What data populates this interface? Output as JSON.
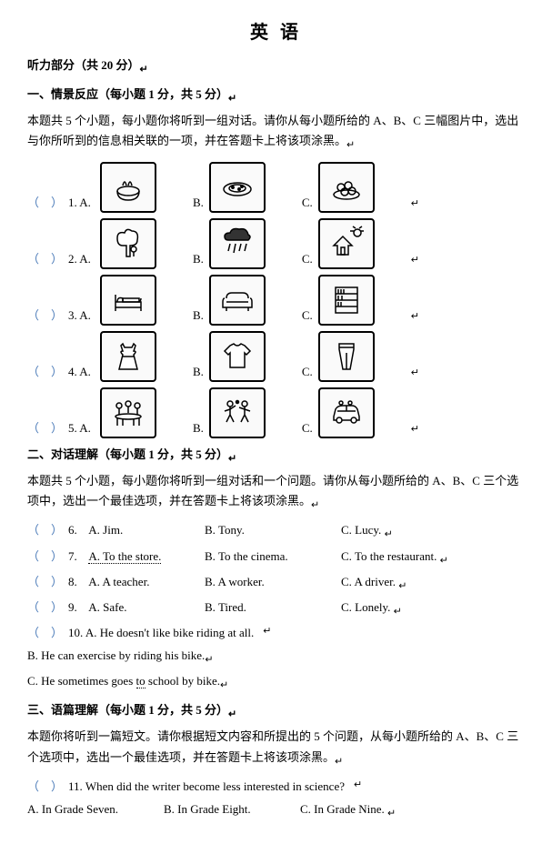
{
  "title": "英 语",
  "listening_header": "听力部分（共 20 分）",
  "arrow": "↵",
  "section1": {
    "heading": "一、情景反应（每小题 1 分，共 5 分）",
    "instruction": "本题共 5 个小题，每小题你将听到一组对话。请你从每小题所给的 A、B、C 三幅图片中，选出与你所听到的信息相关联的一项，并在答题卡上将该项涂黑。",
    "rows": [
      {
        "num": "1.",
        "a": "A.",
        "b": "B.",
        "c": "C.",
        "icons": [
          "bowl",
          "plate",
          "balls"
        ]
      },
      {
        "num": "2.",
        "a": "A.",
        "b": "B.",
        "c": "C.",
        "icons": [
          "tree",
          "rain",
          "house"
        ]
      },
      {
        "num": "3.",
        "a": "A.",
        "b": "B.",
        "c": "C.",
        "icons": [
          "bed",
          "sofa",
          "shelf"
        ]
      },
      {
        "num": "4.",
        "a": "A.",
        "b": "B.",
        "c": "C.",
        "icons": [
          "dress",
          "tshirt",
          "pants"
        ]
      },
      {
        "num": "5.",
        "a": "A.",
        "b": "B.",
        "c": "C.",
        "icons": [
          "table",
          "play",
          "car"
        ]
      }
    ]
  },
  "section2": {
    "heading": "二、对话理解（每小题 1 分，共 5 分）",
    "instruction": "本题共 5 个小题，每小题你将听到一组对话和一个问题。请你从每小题所给的 A、B、C 三个选项中，选出一个最佳选项，并在答题卡上将该项涂黑。",
    "rows": [
      {
        "num": "6.",
        "a": "A. Jim.",
        "b": "B. Tony.",
        "c": "C. Lucy."
      },
      {
        "num": "7.",
        "a": "A. To the store.",
        "b": "B. To the cinema.",
        "c": "C. To the restaurant.",
        "a_dotted": true
      },
      {
        "num": "8.",
        "a": "A. A teacher.",
        "b": "B. A worker.",
        "c": "C. A driver."
      },
      {
        "num": "9.",
        "a": "A. Safe.",
        "b": "B. Tired.",
        "c": "C. Lonely."
      }
    ],
    "row10": {
      "num": "10.",
      "a": "A. He doesn't like bike riding at all.",
      "b": "B. He can exercise by riding his bike.",
      "c_pre": "C. He sometimes goes ",
      "c_mid": "to",
      "c_post": " school by bike."
    }
  },
  "section3": {
    "heading": "三、语篇理解（每小题 1 分，共 5 分）",
    "instruction": "本题你将听到一篇短文。请你根据短文内容和所提出的 5 个问题，从每小题所给的 A、B、C 三个选项中，选出一个最佳选项，并在答题卡上将该项涂黑。",
    "q11": {
      "num": "11.",
      "q": "When did the writer become less interested in science?",
      "a": "A. In Grade Seven.",
      "b": "B. In Grade Eight.",
      "c": "C. In Grade Nine."
    }
  },
  "paren_open": "（",
  "paren_close": "）"
}
